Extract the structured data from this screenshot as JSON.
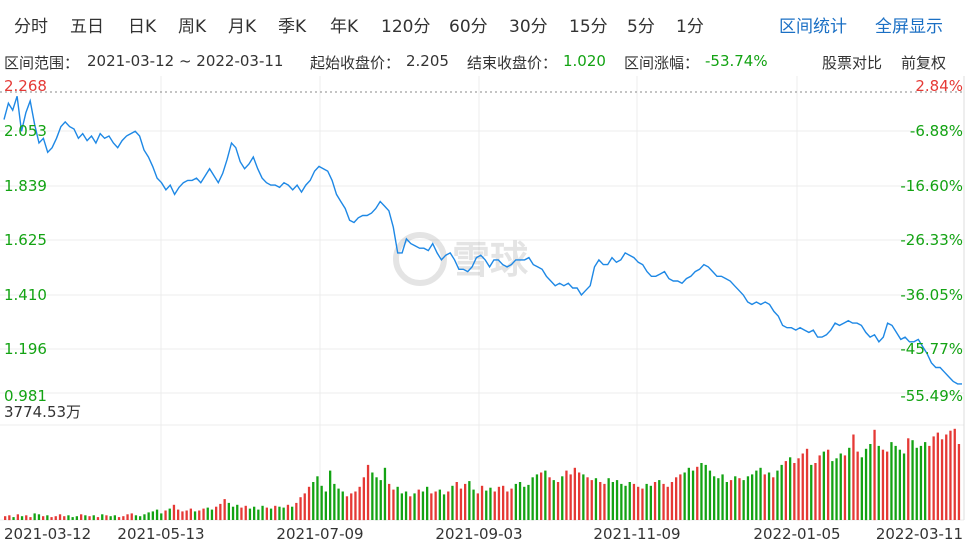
{
  "period_tabs": [
    "分时",
    "五日",
    "日K",
    "周K",
    "月K",
    "季K",
    "年K",
    "120分",
    "60分",
    "30分",
    "15分",
    "5分",
    "1分"
  ],
  "links": {
    "range_stats": "区间统计",
    "fullscreen": "全屏显示"
  },
  "info": {
    "range_label": "区间范围：",
    "range_value": "2021-03-12 ~ 2022-03-11",
    "start_label": "起始收盘价：",
    "start_value": "2.205",
    "end_label": "结束收盘价：",
    "end_value": "1.020",
    "change_label": "区间涨幅：",
    "change_value": "-53.74%",
    "compare": "股票对比",
    "adjust": "前复权"
  },
  "watermark": "雪球",
  "colors": {
    "line": "#1e88e5",
    "up": "#e53935",
    "down": "#13a313",
    "grid": "#ececec"
  },
  "chart_data": {
    "type": "line",
    "price_axis_labels": [
      "2.268",
      "2.053",
      "1.839",
      "1.625",
      "1.410",
      "1.196",
      "0.981"
    ],
    "pct_axis_labels": [
      "2.84%",
      "-6.88%",
      "-16.60%",
      "-26.33%",
      "-36.05%",
      "-45.77%",
      "-55.49%"
    ],
    "ylim": [
      0.981,
      2.268
    ],
    "x_tick_labels": [
      "2021-03-12",
      "2021-05-13",
      "2021-07-09",
      "2021-09-03",
      "2021-11-09",
      "2022-01-05",
      "2022-03-11"
    ],
    "volume_max_label": "3774.53万",
    "price_series": [
      2.15,
      2.22,
      2.19,
      2.25,
      2.1,
      2.18,
      2.23,
      2.13,
      2.05,
      2.07,
      2.01,
      2.03,
      2.07,
      2.12,
      2.14,
      2.12,
      2.11,
      2.07,
      2.09,
      2.06,
      2.08,
      2.05,
      2.09,
      2.07,
      2.08,
      2.05,
      2.03,
      2.06,
      2.08,
      2.09,
      2.1,
      2.08,
      2.02,
      1.99,
      1.95,
      1.9,
      1.88,
      1.85,
      1.87,
      1.83,
      1.86,
      1.88,
      1.89,
      1.89,
      1.9,
      1.88,
      1.91,
      1.94,
      1.91,
      1.88,
      1.92,
      1.98,
      2.05,
      2.03,
      1.97,
      1.94,
      1.96,
      1.99,
      1.94,
      1.9,
      1.88,
      1.87,
      1.87,
      1.86,
      1.88,
      1.87,
      1.85,
      1.87,
      1.84,
      1.87,
      1.89,
      1.93,
      1.95,
      1.94,
      1.93,
      1.89,
      1.83,
      1.8,
      1.77,
      1.72,
      1.71,
      1.73,
      1.74,
      1.74,
      1.75,
      1.77,
      1.8,
      1.78,
      1.76,
      1.69,
      1.58,
      1.58,
      1.64,
      1.62,
      1.61,
      1.6,
      1.6,
      1.59,
      1.62,
      1.58,
      1.55,
      1.57,
      1.58,
      1.55,
      1.51,
      1.51,
      1.5,
      1.52,
      1.56,
      1.57,
      1.55,
      1.52,
      1.55,
      1.55,
      1.53,
      1.52,
      1.53,
      1.55,
      1.55,
      1.55,
      1.56,
      1.53,
      1.52,
      1.51,
      1.48,
      1.46,
      1.44,
      1.45,
      1.44,
      1.45,
      1.43,
      1.43,
      1.4,
      1.42,
      1.44,
      1.52,
      1.55,
      1.53,
      1.53,
      1.56,
      1.54,
      1.55,
      1.58,
      1.57,
      1.56,
      1.54,
      1.53,
      1.5,
      1.48,
      1.48,
      1.49,
      1.5,
      1.47,
      1.46,
      1.46,
      1.45,
      1.47,
      1.48,
      1.5,
      1.51,
      1.53,
      1.52,
      1.5,
      1.48,
      1.48,
      1.47,
      1.46,
      1.44,
      1.42,
      1.4,
      1.37,
      1.36,
      1.37,
      1.36,
      1.37,
      1.36,
      1.33,
      1.31,
      1.27,
      1.26,
      1.26,
      1.25,
      1.26,
      1.25,
      1.24,
      1.25,
      1.22,
      1.22,
      1.23,
      1.25,
      1.28,
      1.27,
      1.28,
      1.29,
      1.28,
      1.28,
      1.27,
      1.24,
      1.22,
      1.23,
      1.2,
      1.22,
      1.28,
      1.27,
      1.24,
      1.21,
      1.22,
      1.2,
      1.2,
      1.21,
      1.18,
      1.15,
      1.11,
      1.09,
      1.09,
      1.07,
      1.05,
      1.03,
      1.02,
      1.02
    ],
    "volume_series": [
      0.04,
      0.05,
      0.03,
      0.06,
      0.04,
      0.05,
      0.03,
      0.07,
      0.06,
      0.04,
      0.05,
      0.03,
      0.04,
      0.06,
      0.04,
      0.05,
      0.03,
      0.04,
      0.06,
      0.05,
      0.04,
      0.05,
      0.03,
      0.06,
      0.05,
      0.04,
      0.05,
      0.03,
      0.04,
      0.06,
      0.07,
      0.05,
      0.04,
      0.06,
      0.08,
      0.09,
      0.11,
      0.07,
      0.1,
      0.12,
      0.16,
      0.11,
      0.09,
      0.1,
      0.12,
      0.09,
      0.1,
      0.12,
      0.13,
      0.11,
      0.14,
      0.17,
      0.22,
      0.18,
      0.14,
      0.16,
      0.13,
      0.15,
      0.12,
      0.14,
      0.11,
      0.15,
      0.13,
      0.12,
      0.15,
      0.14,
      0.13,
      0.16,
      0.14,
      0.18,
      0.24,
      0.28,
      0.35,
      0.4,
      0.46,
      0.36,
      0.3,
      0.52,
      0.38,
      0.33,
      0.3,
      0.25,
      0.28,
      0.3,
      0.35,
      0.45,
      0.58,
      0.5,
      0.45,
      0.42,
      0.55,
      0.38,
      0.32,
      0.35,
      0.28,
      0.3,
      0.25,
      0.28,
      0.32,
      0.3,
      0.35,
      0.28,
      0.3,
      0.32,
      0.27,
      0.3,
      0.36,
      0.4,
      0.33,
      0.38,
      0.41,
      0.32,
      0.28,
      0.36,
      0.31,
      0.34,
      0.3,
      0.35,
      0.36,
      0.3,
      0.33,
      0.38,
      0.4,
      0.35,
      0.37,
      0.45,
      0.48,
      0.5,
      0.52,
      0.45,
      0.42,
      0.4,
      0.46,
      0.52,
      0.48,
      0.55,
      0.5,
      0.48,
      0.45,
      0.42,
      0.44,
      0.4,
      0.38,
      0.44,
      0.4,
      0.42,
      0.38,
      0.36,
      0.4,
      0.38,
      0.35,
      0.33,
      0.38,
      0.36,
      0.4,
      0.42,
      0.38,
      0.35,
      0.4,
      0.45,
      0.48,
      0.5,
      0.55,
      0.52,
      0.56,
      0.6,
      0.58,
      0.52,
      0.46,
      0.44,
      0.48,
      0.4,
      0.42,
      0.46,
      0.44,
      0.42,
      0.46,
      0.48,
      0.52,
      0.55,
      0.48,
      0.5,
      0.45,
      0.52,
      0.58,
      0.62,
      0.66,
      0.6,
      0.65,
      0.7,
      0.75,
      0.58,
      0.6,
      0.68,
      0.72,
      0.74,
      0.62,
      0.65,
      0.7,
      0.68,
      0.76,
      0.9,
      0.72,
      0.66,
      0.75,
      0.8,
      0.95,
      0.78,
      0.74,
      0.72,
      0.82,
      0.78,
      0.74,
      0.7,
      0.86,
      0.84,
      0.76,
      0.78,
      0.82,
      0.78,
      0.88,
      0.92,
      0.85,
      0.9,
      0.94,
      0.96,
      0.8
    ]
  }
}
